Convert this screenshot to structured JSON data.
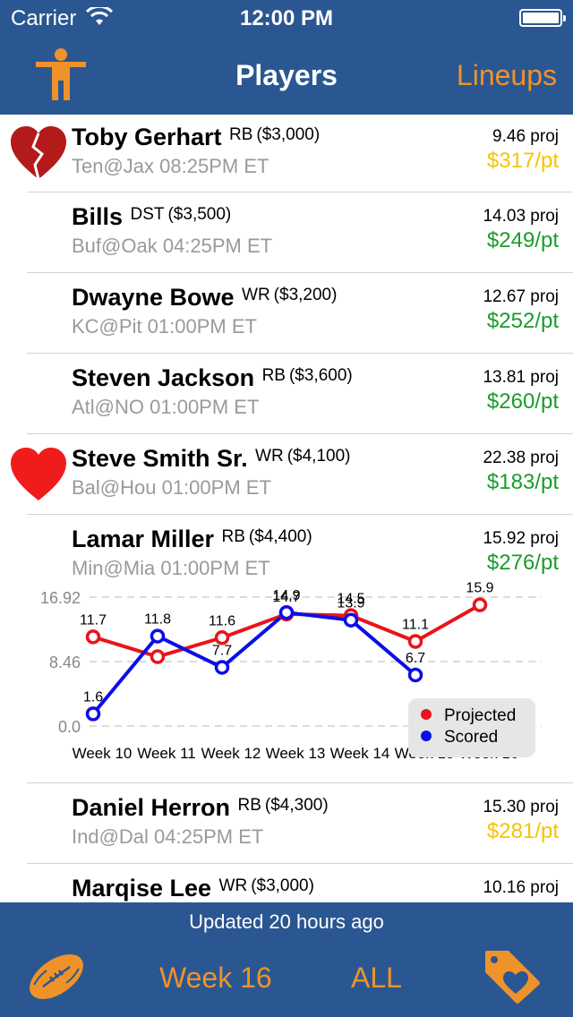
{
  "status": {
    "carrier": "Carrier",
    "time": "12:00 PM"
  },
  "nav": {
    "title": "Players",
    "right": "Lineups",
    "left_icon": "person-icon"
  },
  "players": [
    {
      "name": "Toby Gerhart",
      "pos": "RB",
      "price": "($3,000)",
      "game": "Ten@Jax 08:25PM ET",
      "proj": "9.46 proj",
      "ppt": "$317/pt",
      "ppt_color": "yellow",
      "heart": "broken"
    },
    {
      "name": "Bills",
      "pos": "DST",
      "price": "($3,500)",
      "game": "Buf@Oak 04:25PM ET",
      "proj": "14.03 proj",
      "ppt": "$249/pt",
      "ppt_color": "green",
      "heart": "none"
    },
    {
      "name": "Dwayne Bowe",
      "pos": "WR",
      "price": "($3,200)",
      "game": "KC@Pit 01:00PM ET",
      "proj": "12.67 proj",
      "ppt": "$252/pt",
      "ppt_color": "green",
      "heart": "none"
    },
    {
      "name": "Steven Jackson",
      "pos": "RB",
      "price": "($3,600)",
      "game": "Atl@NO 01:00PM ET",
      "proj": "13.81 proj",
      "ppt": "$260/pt",
      "ppt_color": "green",
      "heart": "none"
    },
    {
      "name": "Steve Smith Sr.",
      "pos": "WR",
      "price": "($4,100)",
      "game": "Bal@Hou 01:00PM ET",
      "proj": "22.38 proj",
      "ppt": "$183/pt",
      "ppt_color": "green",
      "heart": "full"
    },
    {
      "name": "Lamar Miller",
      "pos": "RB",
      "price": "($4,400)",
      "game": "Min@Mia 01:00PM ET",
      "proj": "15.92 proj",
      "ppt": "$276/pt",
      "ppt_color": "green",
      "heart": "none"
    },
    {
      "name": "Daniel Herron",
      "pos": "RB",
      "price": "($4,300)",
      "game": "Ind@Dal 04:25PM ET",
      "proj": "15.30 proj",
      "ppt": "$281/pt",
      "ppt_color": "yellow",
      "heart": "none"
    },
    {
      "name": "Marqise Lee",
      "pos": "WR",
      "price": "($3,000)",
      "game": "",
      "proj": "10.16 proj",
      "ppt": "",
      "ppt_color": "green",
      "heart": "none"
    }
  ],
  "colors": {
    "projected": "#e8141a",
    "scored": "#0a0ee6",
    "accent": "#f0922a",
    "bar": "#2a5791"
  },
  "chart_data": {
    "type": "line",
    "categories": [
      "Week 10",
      "Week 11",
      "Week 12",
      "Week 13",
      "Week 14",
      "Week 15",
      "Week 16"
    ],
    "series": [
      {
        "name": "Projected",
        "values": [
          11.7,
          9.1,
          11.6,
          14.7,
          14.5,
          11.1,
          15.9
        ],
        "labels": [
          "11.7",
          "",
          "11.6",
          "14.7",
          "14.5",
          "11.1",
          "15.9"
        ]
      },
      {
        "name": "Scored",
        "values": [
          1.6,
          11.8,
          7.7,
          14.9,
          13.9,
          6.7,
          null
        ],
        "labels": [
          "1.6",
          "11.8",
          "7.7",
          "14.9",
          "13.9",
          "6.7",
          ""
        ]
      }
    ],
    "yticks": [
      "16.92",
      "8.46",
      "0.0"
    ],
    "ylim": [
      0,
      16.92
    ],
    "legend_position": "bottom-right",
    "grid": true
  },
  "footer": {
    "updated": "Updated 20 hours ago",
    "week": "Week 16",
    "filter": "ALL",
    "left_icon": "football-icon",
    "right_icon": "tag-heart-icon"
  }
}
